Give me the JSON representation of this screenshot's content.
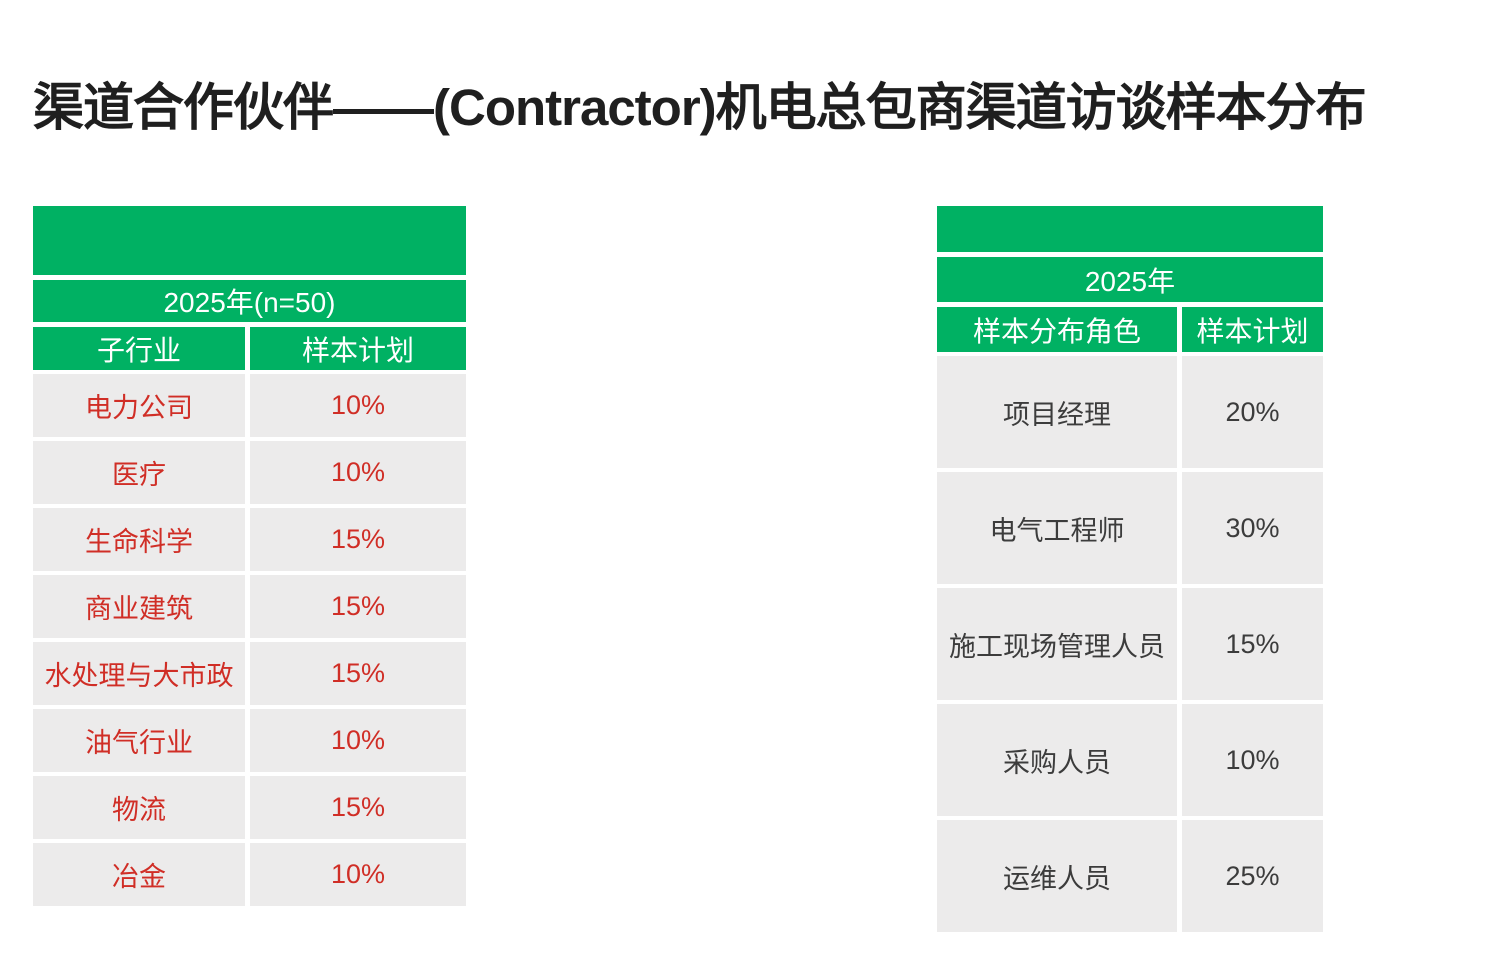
{
  "title": "渠道合作伙伴——(Contractor)机电总包商渠道访谈样本分布",
  "colors": {
    "green": "#00B163",
    "gray": "#ECEBEB",
    "red": "#D02E26",
    "dark": "#3C3C3C"
  },
  "left_table": {
    "year_header": "2025年(n=50)",
    "columns": [
      "子行业",
      "样本计划"
    ],
    "rows": [
      {
        "label": "电力公司",
        "value": "10%"
      },
      {
        "label": "医疗",
        "value": "10%"
      },
      {
        "label": "生命科学",
        "value": "15%"
      },
      {
        "label": "商业建筑",
        "value": "15%"
      },
      {
        "label": "水处理与大市政",
        "value": "15%"
      },
      {
        "label": "油气行业",
        "value": "10%"
      },
      {
        "label": "物流",
        "value": "15%"
      },
      {
        "label": "冶金",
        "value": "10%"
      }
    ]
  },
  "right_table": {
    "year_header": "2025年",
    "columns": [
      "样本分布角色",
      "样本计划"
    ],
    "rows": [
      {
        "label": "项目经理",
        "value": "20%"
      },
      {
        "label": "电气工程师",
        "value": "30%"
      },
      {
        "label": "施工现场管理人员",
        "value": "15%"
      },
      {
        "label": "采购人员",
        "value": "10%"
      },
      {
        "label": "运维人员",
        "value": "25%"
      }
    ]
  }
}
